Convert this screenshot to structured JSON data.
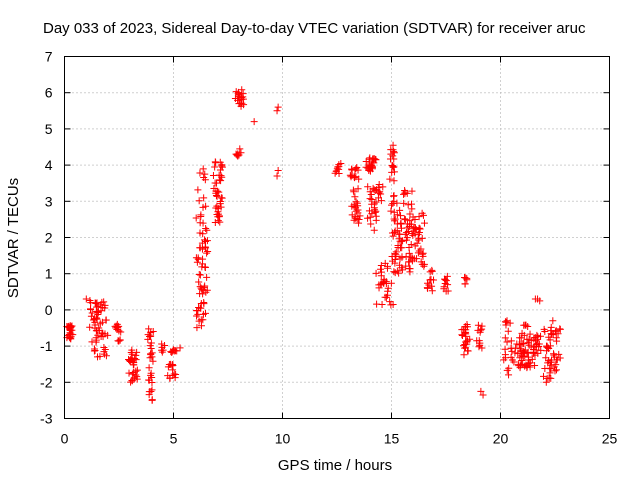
{
  "chart_data": {
    "type": "scatter",
    "title": "Day 033 of 2023, Sidereal Day-to-day VTEC variation (SDTVAR) for receiver aruc",
    "xlabel": "GPS time / hours",
    "ylabel": "SDTVAR / TECUs",
    "xlim": [
      0,
      25
    ],
    "ylim": [
      -3,
      7
    ],
    "xticks": [
      0,
      5,
      10,
      15,
      20,
      25
    ],
    "yticks": [
      -3,
      -2,
      -1,
      0,
      1,
      2,
      3,
      4,
      5,
      6,
      7
    ],
    "grid": true,
    "legend": "none",
    "marker": "plus",
    "color": "#ff0000",
    "series": [
      {
        "name": "SDTVAR",
        "clusters": [
          {
            "x0": 0.1,
            "x1": 0.4,
            "y0": -0.8,
            "y1": -0.4,
            "n": 25
          },
          {
            "x0": 1.1,
            "x1": 2.0,
            "y0": -1.3,
            "y1": 0.3,
            "n": 60
          },
          {
            "x0": 2.3,
            "x1": 2.6,
            "y0": -0.9,
            "y1": -0.4,
            "n": 14
          },
          {
            "x0": 2.9,
            "x1": 3.4,
            "y0": -2.0,
            "y1": -1.1,
            "n": 30
          },
          {
            "x0": 3.8,
            "x1": 4.1,
            "y0": -2.5,
            "y1": -0.5,
            "n": 30
          },
          {
            "x0": 4.4,
            "x1": 4.6,
            "y0": -1.2,
            "y1": -0.9,
            "n": 6
          },
          {
            "x0": 4.7,
            "x1": 5.1,
            "y0": -1.9,
            "y1": -1.5,
            "n": 14
          },
          {
            "x0": 4.8,
            "x1": 5.2,
            "y0": -1.2,
            "y1": -1.1,
            "n": 8
          },
          {
            "x0": 6.0,
            "x1": 6.6,
            "y0": -0.6,
            "y1": 3.9,
            "n": 70
          },
          {
            "x0": 6.8,
            "x1": 7.3,
            "y0": 2.4,
            "y1": 4.1,
            "n": 40
          },
          {
            "x0": 7.8,
            "x1": 8.3,
            "y0": 5.6,
            "y1": 6.1,
            "n": 20
          },
          {
            "x0": 7.8,
            "x1": 8.1,
            "y0": 4.2,
            "y1": 4.5,
            "n": 8
          },
          {
            "x0": 12.4,
            "x1": 12.7,
            "y0": 3.7,
            "y1": 4.1,
            "n": 10
          },
          {
            "x0": 13.1,
            "x1": 13.6,
            "y0": 2.3,
            "y1": 4.0,
            "n": 35
          },
          {
            "x0": 13.8,
            "x1": 14.3,
            "y0": 3.8,
            "y1": 4.2,
            "n": 25
          },
          {
            "x0": 13.8,
            "x1": 14.6,
            "y0": 2.2,
            "y1": 3.5,
            "n": 30
          },
          {
            "x0": 14.2,
            "x1": 15.2,
            "y0": 0.1,
            "y1": 1.3,
            "n": 30
          },
          {
            "x0": 14.8,
            "x1": 16.2,
            "y0": 1.0,
            "y1": 3.3,
            "n": 90
          },
          {
            "x0": 14.9,
            "x1": 15.2,
            "y0": 3.5,
            "y1": 4.6,
            "n": 18
          },
          {
            "x0": 15.9,
            "x1": 16.6,
            "y0": 1.2,
            "y1": 2.7,
            "n": 35
          },
          {
            "x0": 16.6,
            "x1": 17.0,
            "y0": 0.5,
            "y1": 1.1,
            "n": 12
          },
          {
            "x0": 17.3,
            "x1": 17.7,
            "y0": 0.5,
            "y1": 1.0,
            "n": 10
          },
          {
            "x0": 18.2,
            "x1": 18.6,
            "y0": -1.4,
            "y1": -0.4,
            "n": 25
          },
          {
            "x0": 18.3,
            "x1": 18.5,
            "y0": 0.7,
            "y1": 0.9,
            "n": 6
          },
          {
            "x0": 18.9,
            "x1": 19.2,
            "y0": -1.1,
            "y1": -0.4,
            "n": 12
          },
          {
            "x0": 20.1,
            "x1": 20.6,
            "y0": -1.8,
            "y1": -0.3,
            "n": 20
          },
          {
            "x0": 20.6,
            "x1": 21.6,
            "y0": -1.6,
            "y1": -0.4,
            "n": 60
          },
          {
            "x0": 21.4,
            "x1": 21.9,
            "y0": -1.3,
            "y1": -0.7,
            "n": 20
          },
          {
            "x0": 21.9,
            "x1": 22.8,
            "y0": -1.9,
            "y1": -0.4,
            "n": 50
          }
        ],
        "points": [
          [
            1.0,
            0.3
          ],
          [
            1.2,
            0.2
          ],
          [
            5.3,
            -1.05
          ],
          [
            8.7,
            5.2
          ],
          [
            9.75,
            5.5
          ],
          [
            9.8,
            5.6
          ],
          [
            9.75,
            3.7
          ],
          [
            9.8,
            3.85
          ],
          [
            14.6,
            3.4
          ],
          [
            14.5,
            3.2
          ],
          [
            19.1,
            -2.25
          ],
          [
            19.2,
            -2.35
          ],
          [
            21.7,
            0.3
          ],
          [
            21.8,
            0.25
          ],
          [
            21.6,
            0.3
          ],
          [
            22.1,
            -2.0
          ],
          [
            22.4,
            -0.3
          ],
          [
            20.3,
            -0.3
          ]
        ]
      }
    ]
  }
}
